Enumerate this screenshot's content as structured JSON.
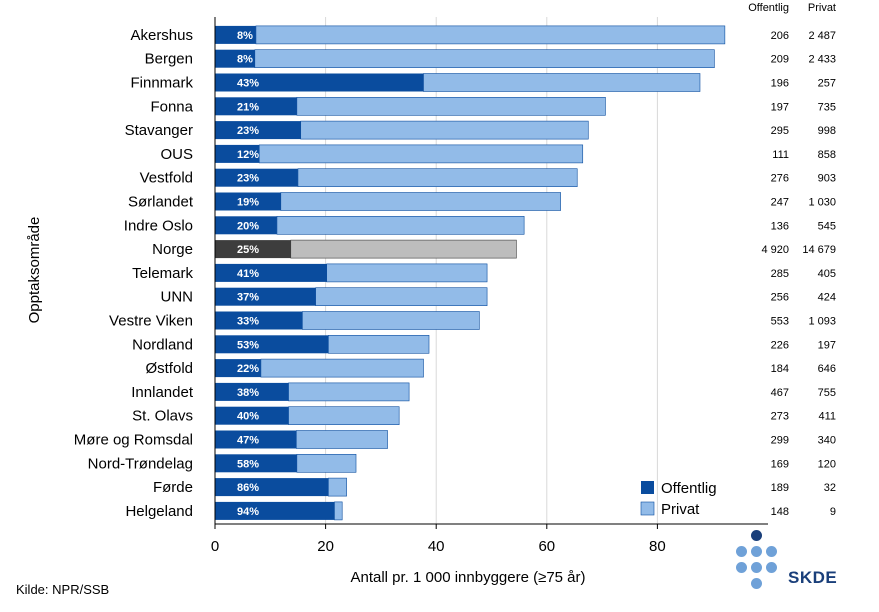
{
  "chart_data": {
    "type": "bar",
    "orientation": "horizontal",
    "stacked": true,
    "ylabel": "Opptaksområde",
    "xlabel": "Antall pr. 1 000 innbyggere (≥75 år)",
    "xlim": [
      0,
      100
    ],
    "xticks": [
      0,
      20,
      40,
      60,
      80
    ],
    "legend": {
      "position": "bottom-right",
      "entries": [
        "Offentlig",
        "Privat"
      ]
    },
    "colors": {
      "offentlig": "#0a4c9e",
      "privat": "#92bbe8",
      "norge_offentlig": "#3d3d3d",
      "norge_privat": "#bdbdbd"
    },
    "table_headers": [
      "Offentlig",
      "Privat"
    ],
    "categories": [
      "Akershus",
      "Bergen",
      "Finnmark",
      "Fonna",
      "Stavanger",
      "OUS",
      "Vestfold",
      "Sørlandet",
      "Indre Oslo",
      "Norge",
      "Telemark",
      "UNN",
      "Vestre Viken",
      "Nordland",
      "Østfold",
      "Innlandet",
      "St. Olavs",
      "Møre og Romsdal",
      "Nord-Trøndelag",
      "Førde",
      "Helgeland"
    ],
    "highlight": "Norge",
    "series": [
      {
        "name": "Offentlig",
        "values": [
          7.4,
          7.2,
          37.7,
          14.8,
          15.5,
          8.0,
          15.0,
          11.9,
          11.2,
          13.7,
          20.2,
          18.2,
          15.8,
          20.5,
          8.3,
          13.3,
          13.3,
          14.7,
          14.8,
          20.5,
          21.6
        ]
      },
      {
        "name": "Privat",
        "values": [
          84.8,
          83.1,
          50.0,
          55.8,
          52.0,
          58.5,
          50.5,
          50.6,
          44.7,
          40.8,
          29.0,
          31.0,
          32.0,
          18.2,
          29.4,
          21.8,
          20.0,
          16.5,
          10.7,
          3.3,
          1.4
        ]
      }
    ],
    "share_labels": [
      "8%",
      "8%",
      "43%",
      "21%",
      "23%",
      "12%",
      "23%",
      "19%",
      "20%",
      "25%",
      "41%",
      "37%",
      "33%",
      "53%",
      "22%",
      "38%",
      "40%",
      "47%",
      "58%",
      "86%",
      "94%"
    ],
    "offentlig_counts": [
      "206",
      "209",
      "196",
      "197",
      "295",
      "111",
      "276",
      "247",
      "136",
      "4 920",
      "285",
      "256",
      "553",
      "226",
      "184",
      "467",
      "273",
      "299",
      "169",
      "189",
      "148"
    ],
    "privat_counts": [
      "2 487",
      "2 433",
      "257",
      "735",
      "998",
      "858",
      "903",
      "1 030",
      "545",
      "14 679",
      "405",
      "424",
      "1 093",
      "197",
      "646",
      "755",
      "411",
      "340",
      "120",
      "32",
      "9"
    ]
  },
  "source": "Kilde: NPR/SSB",
  "logo": {
    "text": "SKDE"
  }
}
